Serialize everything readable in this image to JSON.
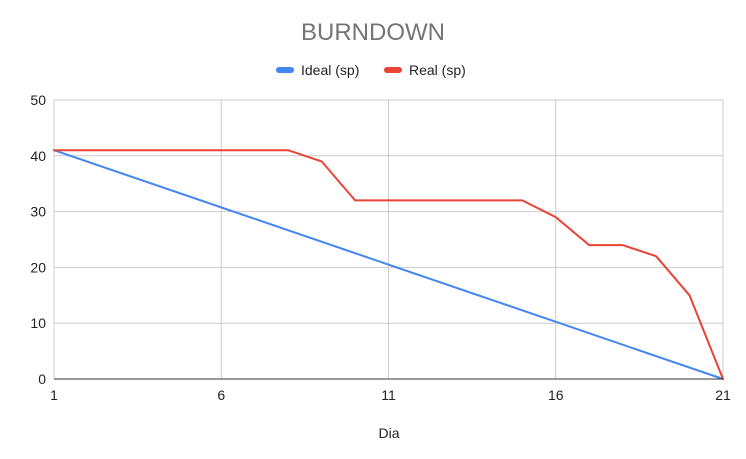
{
  "chart_data": {
    "type": "line",
    "title": "BURNDOWN",
    "xlabel": "Dia",
    "ylabel": "",
    "xlim": [
      1,
      21
    ],
    "ylim": [
      0,
      50
    ],
    "x_ticks": [
      1,
      6,
      11,
      16,
      21
    ],
    "y_ticks": [
      0,
      10,
      20,
      30,
      40,
      50
    ],
    "grid": true,
    "legend_position": "top",
    "series": [
      {
        "name": "Ideal (sp)",
        "color": "#4285f4",
        "x": [
          1,
          21
        ],
        "y": [
          41,
          0
        ]
      },
      {
        "name": "Real (sp)",
        "color": "#ea4335",
        "x": [
          1,
          2,
          3,
          4,
          5,
          6,
          7,
          8,
          9,
          10,
          11,
          12,
          13,
          14,
          15,
          16,
          17,
          18,
          19,
          20,
          21
        ],
        "y": [
          41,
          41,
          41,
          41,
          41,
          41,
          41,
          41,
          39,
          32,
          32,
          32,
          32,
          32,
          32,
          29,
          24,
          24,
          22,
          15,
          0
        ]
      }
    ]
  }
}
